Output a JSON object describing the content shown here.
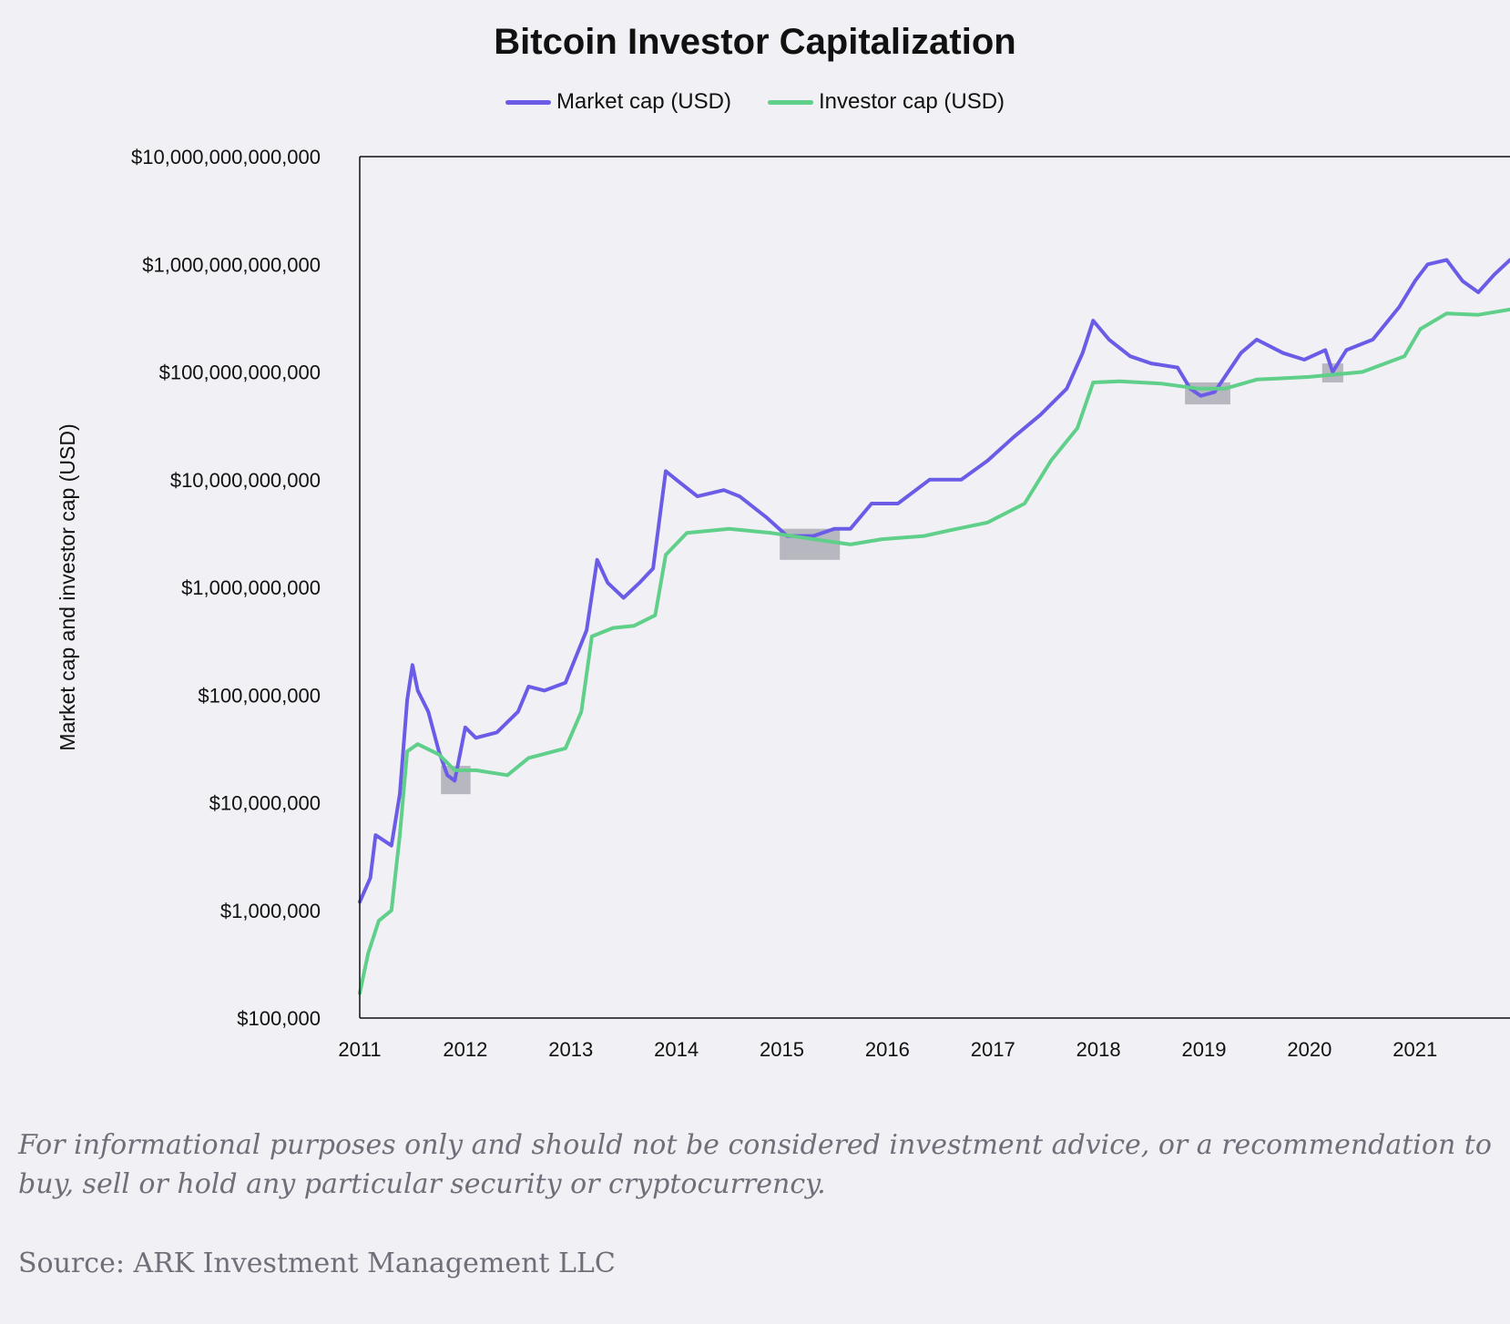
{
  "chart_data": {
    "type": "line",
    "title": "Bitcoin Investor Capitalization",
    "ylabel": "Market cap and investor cap (USD)",
    "xlabel": "",
    "y_scale": "log",
    "ylim": [
      100000,
      10000000000000
    ],
    "xlim": [
      2011.0,
      2021.9
    ],
    "legend_position": "top-center",
    "grid": false,
    "y_ticks": [
      {
        "value": 10000000000000,
        "label": "$10,000,000,000,000"
      },
      {
        "value": 1000000000000,
        "label": "$1,000,000,000,000"
      },
      {
        "value": 100000000000,
        "label": "$100,000,000,000"
      },
      {
        "value": 10000000000,
        "label": "$10,000,000,000"
      },
      {
        "value": 1000000000,
        "label": "$1,000,000,000"
      },
      {
        "value": 100000000,
        "label": "$100,000,000"
      },
      {
        "value": 10000000,
        "label": "$10,000,000"
      },
      {
        "value": 1000000,
        "label": "$1,000,000"
      },
      {
        "value": 100000,
        "label": "$100,000"
      }
    ],
    "x_ticks": [
      {
        "value": 2011,
        "label": "2011"
      },
      {
        "value": 2012,
        "label": "2012"
      },
      {
        "value": 2013,
        "label": "2013"
      },
      {
        "value": 2014,
        "label": "2014"
      },
      {
        "value": 2015,
        "label": "2015"
      },
      {
        "value": 2016,
        "label": "2016"
      },
      {
        "value": 2017,
        "label": "2017"
      },
      {
        "value": 2018,
        "label": "2018"
      },
      {
        "value": 2019,
        "label": "2019"
      },
      {
        "value": 2020,
        "label": "2020"
      },
      {
        "value": 2021,
        "label": "2021"
      }
    ],
    "series": [
      {
        "name": "Market cap (USD)",
        "color": "#6b5ce7",
        "points": [
          [
            2011.0,
            1200000
          ],
          [
            2011.1,
            2000000
          ],
          [
            2011.15,
            5000000
          ],
          [
            2011.3,
            4000000
          ],
          [
            2011.38,
            12000000
          ],
          [
            2011.45,
            90000000
          ],
          [
            2011.5,
            190000000
          ],
          [
            2011.55,
            110000000
          ],
          [
            2011.65,
            70000000
          ],
          [
            2011.75,
            30000000
          ],
          [
            2011.83,
            18000000
          ],
          [
            2011.9,
            16000000
          ],
          [
            2012.0,
            50000000
          ],
          [
            2012.1,
            40000000
          ],
          [
            2012.3,
            45000000
          ],
          [
            2012.5,
            70000000
          ],
          [
            2012.6,
            120000000
          ],
          [
            2012.75,
            110000000
          ],
          [
            2012.95,
            130000000
          ],
          [
            2013.15,
            400000000
          ],
          [
            2013.25,
            1800000000
          ],
          [
            2013.35,
            1100000000
          ],
          [
            2013.5,
            800000000
          ],
          [
            2013.65,
            1100000000
          ],
          [
            2013.78,
            1500000000
          ],
          [
            2013.9,
            12000000000
          ],
          [
            2014.0,
            10000000000
          ],
          [
            2014.2,
            7000000000
          ],
          [
            2014.45,
            8000000000
          ],
          [
            2014.6,
            7000000000
          ],
          [
            2014.85,
            4500000000
          ],
          [
            2015.05,
            3000000000
          ],
          [
            2015.3,
            3000000000
          ],
          [
            2015.5,
            3500000000
          ],
          [
            2015.65,
            3500000000
          ],
          [
            2015.85,
            6000000000
          ],
          [
            2016.1,
            6000000000
          ],
          [
            2016.4,
            10000000000
          ],
          [
            2016.7,
            10000000000
          ],
          [
            2016.95,
            15000000000
          ],
          [
            2017.2,
            25000000000
          ],
          [
            2017.45,
            40000000000
          ],
          [
            2017.7,
            70000000000
          ],
          [
            2017.85,
            150000000000
          ],
          [
            2017.95,
            300000000000
          ],
          [
            2018.1,
            200000000000
          ],
          [
            2018.3,
            140000000000
          ],
          [
            2018.5,
            120000000000
          ],
          [
            2018.75,
            110000000000
          ],
          [
            2018.87,
            70000000000
          ],
          [
            2018.97,
            60000000000
          ],
          [
            2019.1,
            65000000000
          ],
          [
            2019.35,
            150000000000
          ],
          [
            2019.5,
            200000000000
          ],
          [
            2019.75,
            150000000000
          ],
          [
            2019.95,
            130000000000
          ],
          [
            2020.15,
            160000000000
          ],
          [
            2020.22,
            100000000000
          ],
          [
            2020.35,
            160000000000
          ],
          [
            2020.6,
            200000000000
          ],
          [
            2020.85,
            400000000000
          ],
          [
            2021.0,
            700000000000
          ],
          [
            2021.12,
            1000000000000
          ],
          [
            2021.3,
            1100000000000
          ],
          [
            2021.45,
            700000000000
          ],
          [
            2021.6,
            550000000000
          ],
          [
            2021.75,
            800000000000
          ],
          [
            2021.9,
            1100000000000
          ]
        ]
      },
      {
        "name": "Investor cap (USD)",
        "color": "#5fcf89",
        "points": [
          [
            2011.0,
            170000
          ],
          [
            2011.08,
            400000
          ],
          [
            2011.18,
            800000
          ],
          [
            2011.3,
            1000000
          ],
          [
            2011.38,
            5000000
          ],
          [
            2011.45,
            30000000
          ],
          [
            2011.55,
            35000000
          ],
          [
            2011.75,
            28000000
          ],
          [
            2011.9,
            20000000
          ],
          [
            2012.1,
            20000000
          ],
          [
            2012.4,
            18000000
          ],
          [
            2012.6,
            26000000
          ],
          [
            2012.95,
            32000000
          ],
          [
            2013.1,
            70000000
          ],
          [
            2013.2,
            350000000
          ],
          [
            2013.4,
            420000000
          ],
          [
            2013.6,
            440000000
          ],
          [
            2013.8,
            550000000
          ],
          [
            2013.9,
            2000000000
          ],
          [
            2014.1,
            3200000000
          ],
          [
            2014.5,
            3500000000
          ],
          [
            2014.9,
            3200000000
          ],
          [
            2015.3,
            2800000000
          ],
          [
            2015.65,
            2500000000
          ],
          [
            2015.95,
            2800000000
          ],
          [
            2016.35,
            3000000000
          ],
          [
            2016.6,
            3400000000
          ],
          [
            2016.95,
            4000000000
          ],
          [
            2017.3,
            6000000000
          ],
          [
            2017.55,
            15000000000
          ],
          [
            2017.8,
            30000000000
          ],
          [
            2017.95,
            80000000000
          ],
          [
            2018.2,
            82000000000
          ],
          [
            2018.6,
            78000000000
          ],
          [
            2018.95,
            70000000000
          ],
          [
            2019.2,
            70000000000
          ],
          [
            2019.5,
            85000000000
          ],
          [
            2020.0,
            90000000000
          ],
          [
            2020.5,
            100000000000
          ],
          [
            2020.9,
            140000000000
          ],
          [
            2021.05,
            250000000000
          ],
          [
            2021.3,
            350000000000
          ],
          [
            2021.6,
            340000000000
          ],
          [
            2021.9,
            380000000000
          ]
        ]
      }
    ],
    "highlight_regions": [
      {
        "x0": 2011.77,
        "x1": 2012.05,
        "y0": 12000000,
        "y1": 22000000
      },
      {
        "x0": 2014.98,
        "x1": 2015.55,
        "y0": 1800000000,
        "y1": 3500000000
      },
      {
        "x0": 2018.82,
        "x1": 2019.25,
        "y0": 50000000000,
        "y1": 80000000000
      },
      {
        "x0": 2020.12,
        "x1": 2020.32,
        "y0": 80000000000,
        "y1": 120000000000
      }
    ]
  },
  "footer": {
    "disclaimer": "For informational purposes only and should not be considered investment advice, or a recommendation to buy, sell or hold any particular security or cryptocurrency.",
    "source": "Source: ARK Investment Management LLC"
  }
}
